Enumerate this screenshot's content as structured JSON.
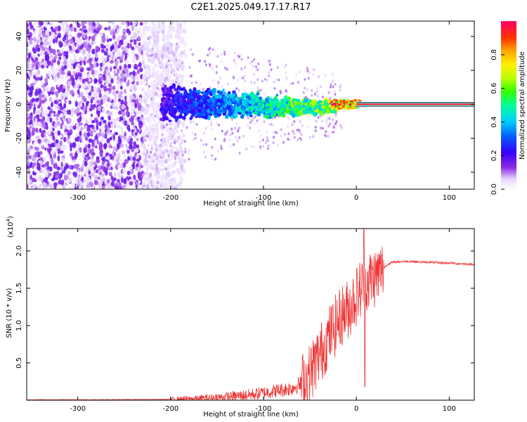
{
  "title": "C2E1.2025.049.17.17.R17",
  "chart_data": [
    {
      "type": "heatmap",
      "xlabel": "Height of straight line (km)",
      "ylabel": "Frequency (Hz)",
      "xlim": [
        -355,
        127
      ],
      "ylim": [
        -50,
        49
      ],
      "xticks": [
        -300,
        -200,
        -100,
        0,
        100
      ],
      "yticks": [
        -40,
        -20,
        0,
        20,
        40
      ],
      "tick_labels_x": [
        "-300",
        "-200",
        "-100",
        "0",
        "100"
      ],
      "tick_labels_y": [
        "-40",
        "-20",
        "0",
        "20",
        "40"
      ],
      "grid": false,
      "colorbar": {
        "label": "Normalized spectral amplitude",
        "range": [
          0,
          1
        ],
        "ticks": [
          0,
          0.2,
          0.4,
          0.6,
          0.8
        ],
        "tick_labels": [
          "0.0",
          "0.2",
          "0.4",
          "0.6",
          "0.8"
        ]
      },
      "features": {
        "noise_region_x": [
          -355,
          -210
        ],
        "signal_band_center_hz": 0,
        "signal_band_start_x": -210,
        "strong_line_start_x": 0,
        "line_amplitude": 1.0
      }
    },
    {
      "type": "line",
      "xlabel": "Height of straight line (km)",
      "ylabel": "SNR (10 * v/v)",
      "y_multiplier": "(x10",
      "y_multiplier_exp": "4",
      "y_multiplier_close": ")",
      "xlim": [
        -355,
        127
      ],
      "ylim": [
        0,
        2.3
      ],
      "xticks": [
        -300,
        -200,
        -100,
        0,
        100
      ],
      "yticks": [
        0.5,
        1.0,
        1.5,
        2.0
      ],
      "tick_labels_x": [
        "-300",
        "-200",
        "-100",
        "0",
        "100"
      ],
      "tick_labels_y": [
        "0.5",
        "1.0",
        "1.5",
        "2.0"
      ],
      "grid": false,
      "series": [
        {
          "color": "#ee3333",
          "x": [
            -355,
            -300,
            -250,
            -200,
            -170,
            -150,
            -130,
            -110,
            -100,
            -90,
            -80,
            -70,
            -60,
            -50,
            -45,
            -40,
            -35,
            -30,
            -25,
            -20,
            -15,
            -10,
            -5,
            0,
            5,
            8,
            10,
            15,
            20,
            25,
            30,
            35,
            40,
            50,
            60,
            70,
            80,
            90,
            100,
            110,
            127
          ],
          "y": [
            0.005,
            0.006,
            0.008,
            0.012,
            0.02,
            0.035,
            0.055,
            0.08,
            0.1,
            0.12,
            0.14,
            0.16,
            0.22,
            0.35,
            0.5,
            0.6,
            0.72,
            0.85,
            0.95,
            1.05,
            1.15,
            1.2,
            1.3,
            1.4,
            1.5,
            1.55,
            1.58,
            1.62,
            1.65,
            1.7,
            1.78,
            1.83,
            1.85,
            1.86,
            1.86,
            1.85,
            1.85,
            1.84,
            1.84,
            1.83,
            1.82
          ]
        }
      ],
      "spikes": [
        {
          "x": 8,
          "y": 2.3
        },
        {
          "x": 9,
          "y": 0.18
        }
      ]
    }
  ]
}
